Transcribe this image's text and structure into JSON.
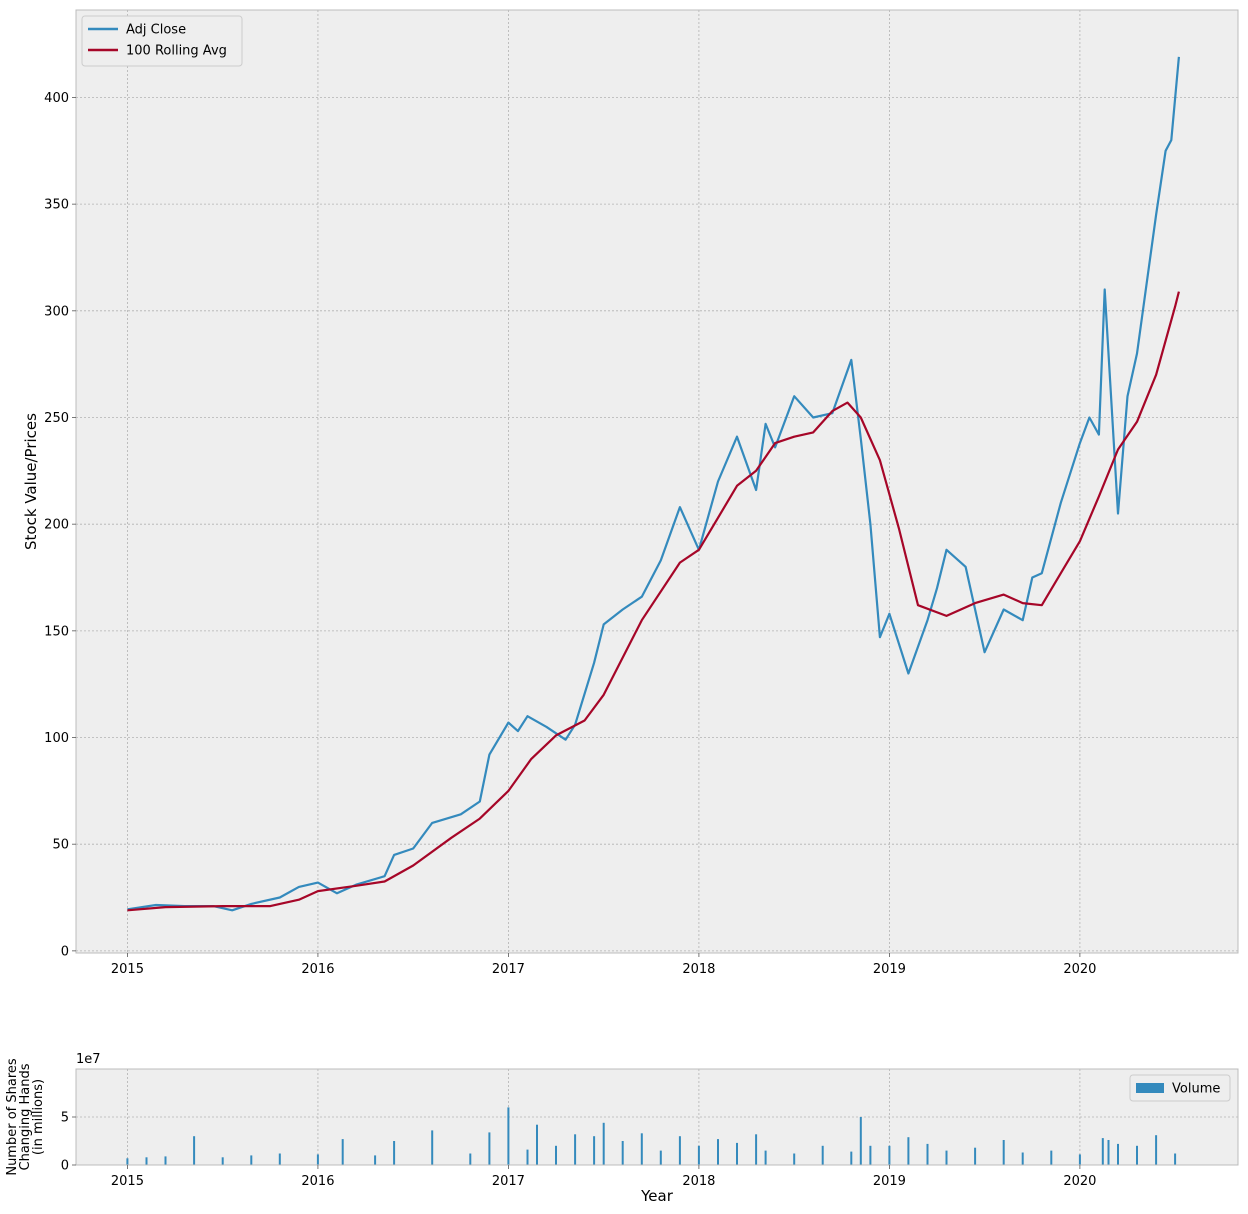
{
  "chart_data": [
    {
      "type": "line",
      "title": "",
      "xlabel": "",
      "ylabel": "Stock Value/Prices",
      "xlim": [
        2014.73,
        2020.83
      ],
      "ylim": [
        -1,
        441
      ],
      "x_ticks": [
        2015,
        2016,
        2017,
        2018,
        2019,
        2020
      ],
      "x_tick_labels": [
        "2015",
        "2016",
        "2017",
        "2018",
        "2019",
        "2020"
      ],
      "y_ticks": [
        0,
        50,
        100,
        150,
        200,
        250,
        300,
        350,
        400
      ],
      "y_tick_labels": [
        "0",
        "50",
        "100",
        "150",
        "200",
        "250",
        "300",
        "350",
        "400"
      ],
      "grid": true,
      "legend_position": "top-left",
      "series": [
        {
          "name": "Adj Close",
          "color": "#348ABD",
          "x": [
            2015.0,
            2015.15,
            2015.3,
            2015.45,
            2015.55,
            2015.65,
            2015.8,
            2015.9,
            2016.0,
            2016.1,
            2016.2,
            2016.35,
            2016.4,
            2016.5,
            2016.6,
            2016.75,
            2016.85,
            2016.9,
            2017.0,
            2017.05,
            2017.1,
            2017.2,
            2017.3,
            2017.35,
            2017.45,
            2017.5,
            2017.6,
            2017.7,
            2017.8,
            2017.9,
            2018.0,
            2018.1,
            2018.2,
            2018.3,
            2018.35,
            2018.4,
            2018.5,
            2018.6,
            2018.7,
            2018.8,
            2018.85,
            2018.9,
            2018.95,
            2019.0,
            2019.1,
            2019.2,
            2019.25,
            2019.3,
            2019.4,
            2019.5,
            2019.6,
            2019.7,
            2019.75,
            2019.8,
            2019.9,
            2020.0,
            2020.05,
            2020.1,
            2020.13,
            2020.2,
            2020.25,
            2020.3,
            2020.4,
            2020.45,
            2020.48,
            2020.52
          ],
          "values": [
            19.5,
            21.5,
            21,
            21,
            19,
            22,
            25,
            30,
            32,
            27,
            31,
            35,
            45,
            48,
            60,
            64,
            70,
            92,
            107,
            103,
            110,
            105,
            99,
            106,
            135,
            153,
            160,
            166,
            183,
            208,
            188,
            220,
            241,
            216,
            247,
            236,
            260,
            250,
            252,
            277,
            240,
            200,
            147,
            158,
            130,
            155,
            170,
            188,
            180,
            140,
            160,
            155,
            175,
            177,
            210,
            238,
            250,
            242,
            310,
            205,
            260,
            280,
            345,
            375,
            380,
            419
          ]
        },
        {
          "name": "100 Rolling Avg",
          "color": "#A60628",
          "x": [
            2015.0,
            2015.2,
            2015.5,
            2015.75,
            2015.9,
            2016.0,
            2016.2,
            2016.35,
            2016.5,
            2016.7,
            2016.85,
            2017.0,
            2017.12,
            2017.25,
            2017.4,
            2017.5,
            2017.7,
            2017.9,
            2018.0,
            2018.1,
            2018.2,
            2018.3,
            2018.4,
            2018.5,
            2018.6,
            2018.7,
            2018.78,
            2018.85,
            2018.95,
            2019.05,
            2019.15,
            2019.3,
            2019.45,
            2019.6,
            2019.7,
            2019.8,
            2019.9,
            2020.0,
            2020.1,
            2020.2,
            2020.3,
            2020.4,
            2020.5,
            2020.52
          ],
          "values": [
            19,
            20.5,
            21,
            21,
            24,
            28,
            30.5,
            32.5,
            40,
            53,
            62,
            75,
            90,
            101,
            108,
            120,
            155,
            182,
            188,
            203,
            218,
            225,
            238,
            241,
            243,
            253,
            257,
            250,
            230,
            198,
            162,
            157,
            163,
            167,
            163,
            162,
            177,
            192,
            213,
            235,
            248,
            270,
            302,
            309
          ]
        }
      ]
    },
    {
      "type": "bar",
      "title": "",
      "xlabel": "Year",
      "ylabel": "Number of Shares\nChanging Hands\n(in millions)",
      "ylabel_lines": [
        "Number of Shares",
        "Changing Hands",
        "(in millions)"
      ],
      "y_offset_label": "1e7",
      "xlim": [
        2014.73,
        2020.83
      ],
      "ylim": [
        0,
        10
      ],
      "x_ticks": [
        2015,
        2016,
        2017,
        2018,
        2019,
        2020
      ],
      "x_tick_labels": [
        "2015",
        "2016",
        "2017",
        "2018",
        "2019",
        "2020"
      ],
      "y_ticks": [
        0,
        5
      ],
      "y_tick_labels": [
        "0",
        "5"
      ],
      "grid": true,
      "legend_position": "top-right",
      "series": [
        {
          "name": "Volume",
          "color": "#348ABD",
          "x": [
            2015.0,
            2015.1,
            2015.2,
            2015.35,
            2015.5,
            2015.65,
            2015.8,
            2016.0,
            2016.13,
            2016.3,
            2016.4,
            2016.6,
            2016.8,
            2016.9,
            2017.0,
            2017.1,
            2017.15,
            2017.25,
            2017.35,
            2017.45,
            2017.5,
            2017.6,
            2017.7,
            2017.8,
            2017.9,
            2018.0,
            2018.1,
            2018.2,
            2018.3,
            2018.35,
            2018.5,
            2018.65,
            2018.8,
            2018.85,
            2018.9,
            2019.0,
            2019.1,
            2019.2,
            2019.3,
            2019.45,
            2019.6,
            2019.7,
            2019.85,
            2020.0,
            2020.12,
            2020.15,
            2020.2,
            2020.3,
            2020.4,
            2020.5
          ],
          "values": [
            0.7,
            0.8,
            0.9,
            3.0,
            0.8,
            1.0,
            1.2,
            1.1,
            2.7,
            1.0,
            2.5,
            3.6,
            1.2,
            3.4,
            6.0,
            1.6,
            4.2,
            2.0,
            3.2,
            3.0,
            4.4,
            2.5,
            3.3,
            1.5,
            3.0,
            2.0,
            2.7,
            2.3,
            3.2,
            1.5,
            1.2,
            2.0,
            1.4,
            5.0,
            2.0,
            2.0,
            2.9,
            2.2,
            1.5,
            1.8,
            2.6,
            1.3,
            1.5,
            1.1,
            2.8,
            2.6,
            2.2,
            2.0,
            3.1,
            1.2
          ]
        }
      ]
    }
  ]
}
